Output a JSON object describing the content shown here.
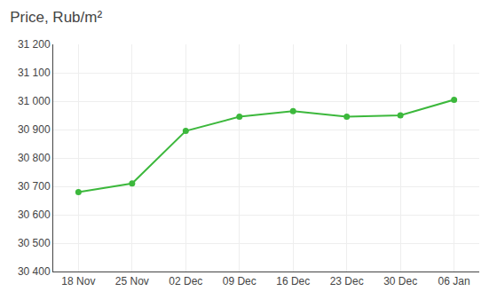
{
  "chart_data": {
    "type": "line",
    "title": "Price, Rub/m²",
    "categories": [
      "18 Nov",
      "25 Nov",
      "02 Dec",
      "09 Dec",
      "16 Dec",
      "23 Dec",
      "30 Dec",
      "06 Jan"
    ],
    "values": [
      30680,
      30710,
      30895,
      30945,
      30965,
      30945,
      30950,
      31005
    ],
    "color": "#3cb83c",
    "marker": "circle",
    "ylim": [
      30400,
      31200
    ],
    "yticks": [
      {
        "value": 30400,
        "label": "30 400"
      },
      {
        "value": 30500,
        "label": "30 500"
      },
      {
        "value": 30600,
        "label": "30 600"
      },
      {
        "value": 30700,
        "label": "30 700"
      },
      {
        "value": 30800,
        "label": "30 800"
      },
      {
        "value": 30900,
        "label": "30 900"
      },
      {
        "value": 31000,
        "label": "31 000"
      },
      {
        "value": 31100,
        "label": "31 100"
      },
      {
        "value": 31200,
        "label": "31 200"
      }
    ],
    "grid": true
  }
}
